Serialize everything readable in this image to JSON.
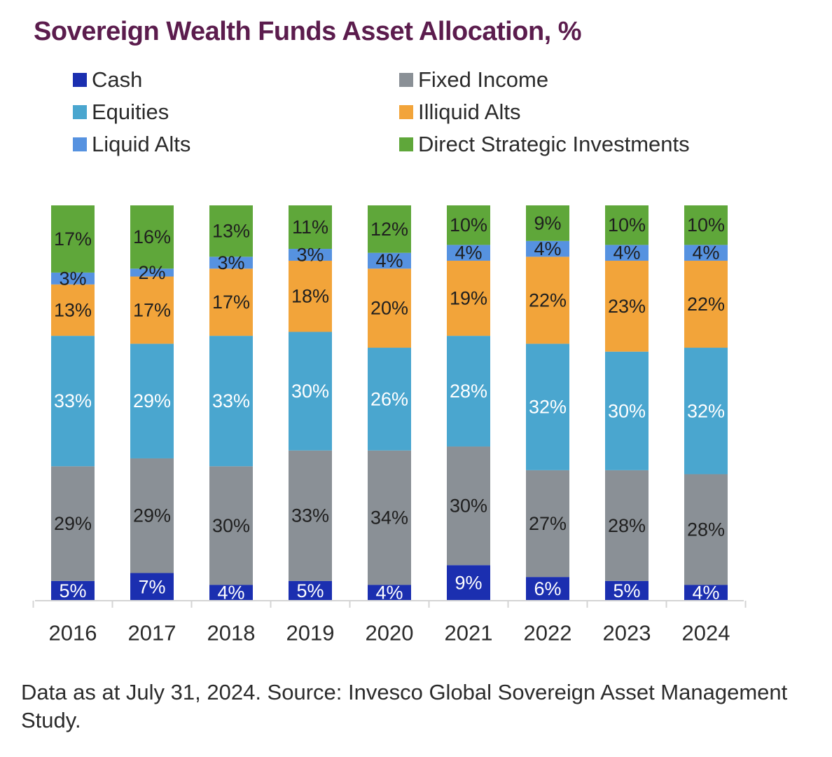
{
  "title": "Sovereign Wealth Funds Asset Allocation, %",
  "footnote": "Data as at July 31, 2024. Source: Invesco Global Sovereign Asset Management Study.",
  "colors": {
    "Cash": "#1b2fb0",
    "Fixed Income": "#8a9096",
    "Equities": "#4aa6cf",
    "Illiquid Alts": "#f2a43a",
    "Liquid Alts": "#5692e0",
    "Direct Strategic Investments": "#5fa73a",
    "axis": "#d4d4d4",
    "title": "#5b1c4d"
  },
  "legend": [
    {
      "name": "Cash",
      "icon": "square-swatch"
    },
    {
      "name": "Equities",
      "icon": "square-swatch"
    },
    {
      "name": "Liquid Alts",
      "icon": "square-swatch"
    },
    {
      "name": "Fixed Income",
      "icon": "square-swatch"
    },
    {
      "name": "Illiquid Alts",
      "icon": "square-swatch"
    },
    {
      "name": "Direct Strategic Investments",
      "icon": "square-swatch"
    }
  ],
  "chart_data": {
    "type": "bar",
    "stacked": true,
    "title": "Sovereign Wealth Funds Asset Allocation, %",
    "xlabel": "",
    "ylabel": "",
    "ylim": [
      0,
      100
    ],
    "grid": false,
    "legend_position": "top",
    "categories": [
      "2016",
      "2017",
      "2018",
      "2019",
      "2020",
      "2021",
      "2022",
      "2023",
      "2024"
    ],
    "series": [
      {
        "name": "Cash",
        "values": [
          5,
          7,
          4,
          5,
          4,
          9,
          6,
          5,
          4
        ]
      },
      {
        "name": "Fixed Income",
        "values": [
          29,
          29,
          30,
          33,
          34,
          30,
          27,
          28,
          28
        ]
      },
      {
        "name": "Equities",
        "values": [
          33,
          29,
          33,
          30,
          26,
          28,
          32,
          30,
          32
        ]
      },
      {
        "name": "Illiquid Alts",
        "values": [
          13,
          17,
          17,
          18,
          20,
          19,
          22,
          23,
          22
        ]
      },
      {
        "name": "Liquid Alts",
        "values": [
          3,
          2,
          3,
          3,
          4,
          4,
          4,
          4,
          4
        ]
      },
      {
        "name": "Direct Strategic Investments",
        "values": [
          17,
          16,
          13,
          11,
          12,
          10,
          9,
          10,
          10
        ]
      }
    ]
  }
}
